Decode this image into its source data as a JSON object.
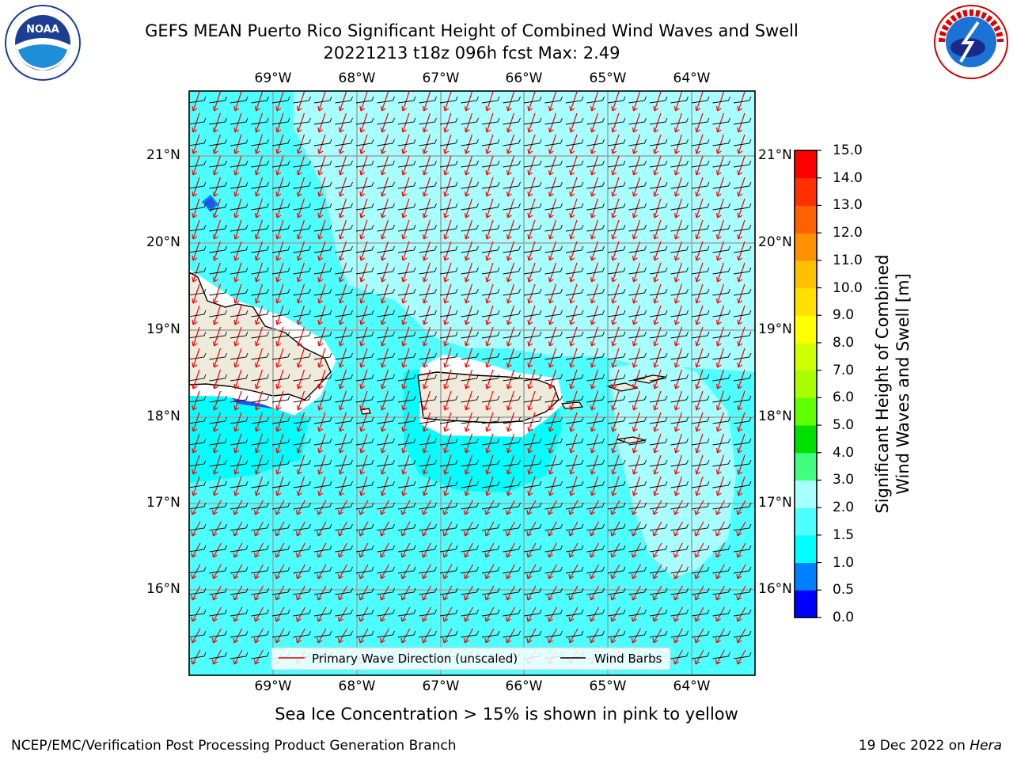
{
  "title_line1": "GEFS MEAN Puerto Rico Significant Height of Combined Wind Waves and Swell",
  "title_line2": "20221213 t18z 096h fcst   Max: 2.49",
  "logos": {
    "left": {
      "name": "noaa-logo",
      "text": "NOAA",
      "ring_text": "NATIONAL OCEANIC AND ATMOSPHERIC ADMINISTRATION · U.S. DEPARTMENT OF COMMERCE"
    },
    "right": {
      "name": "nws-logo",
      "ring_text": "NATIONAL WEATHER SERVICE"
    }
  },
  "map": {
    "lon_labels": [
      "69°W",
      "68°W",
      "67°W",
      "66°W",
      "65°W",
      "64°W"
    ],
    "lat_labels": [
      "21°N",
      "20°N",
      "19°N",
      "18°N",
      "17°N",
      "16°N"
    ],
    "legend": {
      "wave_label": "Primary Wave Direction (unscaled)",
      "barb_label": "Wind Barbs"
    },
    "colors": {
      "land": "#efebdc",
      "ocean_1_5_2_0": "#4dffff",
      "ocean_2_0_3_0": "#a8ffff",
      "wave_arrow": "#ff0000"
    }
  },
  "colorbar": {
    "label_line1": "Significant Height of Combined",
    "label_line2": "Wind Waves and Swell [m]",
    "ticks": [
      "0.0",
      "0.5",
      "1.0",
      "1.5",
      "2.0",
      "3.0",
      "4.0",
      "5.0",
      "6.0",
      "7.0",
      "8.0",
      "9.0",
      "10.0",
      "11.0",
      "12.0",
      "13.0",
      "14.0",
      "15.0"
    ],
    "colors": [
      "#0000ff",
      "#0080ff",
      "#00ffff",
      "#4dffff",
      "#a8ffff",
      "#40ff80",
      "#00e000",
      "#60ff00",
      "#a8ff00",
      "#d0ff00",
      "#ffff00",
      "#ffe000",
      "#ffc000",
      "#ff9000",
      "#ff6000",
      "#ff3000",
      "#ff0000"
    ]
  },
  "subtitle": "Sea Ice Concentration > 15% is shown in pink to yellow",
  "footer": {
    "left": "NCEP/EMC/Verification Post Processing Product Generation Branch",
    "date": "19 Dec 2022 on",
    "machine": "Hera"
  }
}
